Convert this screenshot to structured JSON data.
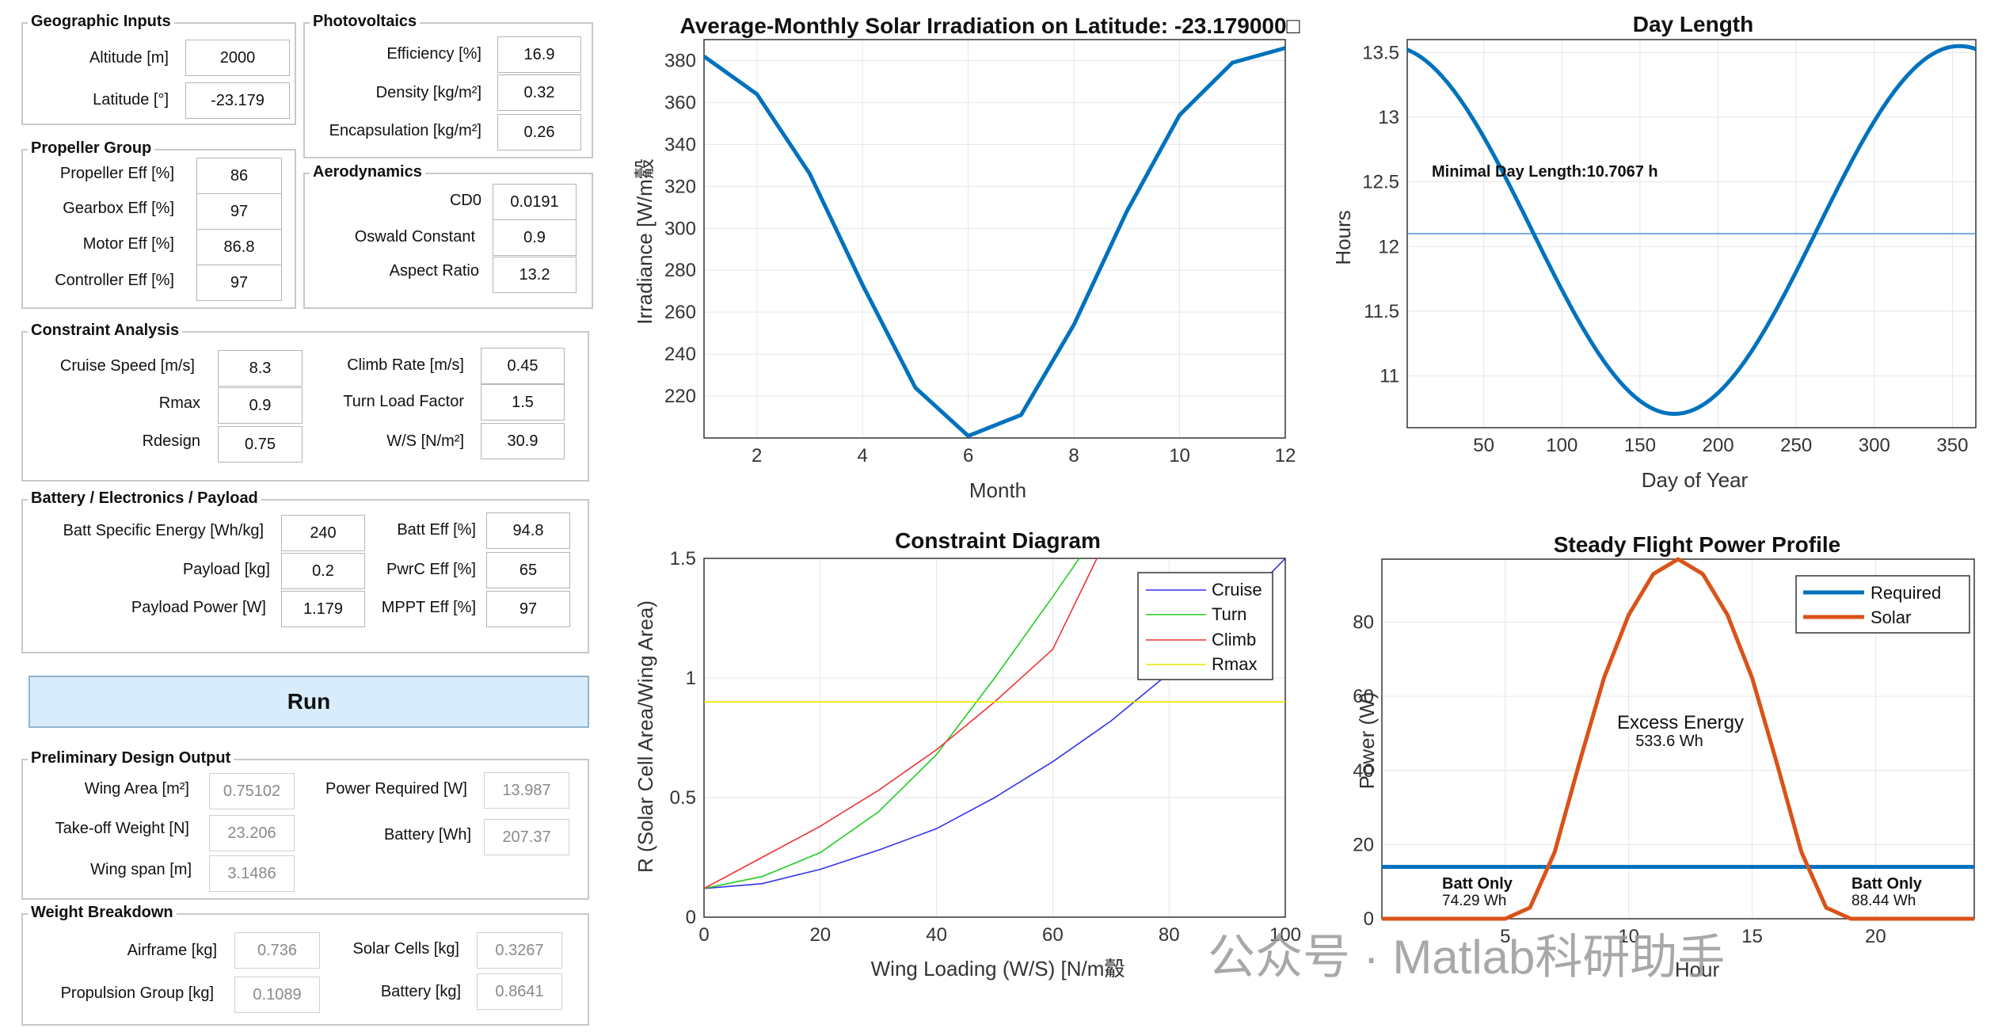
{
  "geo": {
    "title": "Geographic Inputs",
    "altitude_label": "Altitude [m]",
    "altitude": "2000",
    "latitude_label": "Latitude [°]",
    "latitude": "-23.179"
  },
  "pv": {
    "title": "Photovoltaics",
    "eff_label": "Efficiency [%]",
    "eff": "16.9",
    "density_label": "Density [kg/m²]",
    "density": "0.32",
    "encap_label": "Encapsulation [kg/m²]",
    "encap": "0.26"
  },
  "prop": {
    "title": "Propeller Group",
    "prop_label": "Propeller Eff [%]",
    "prop": "86",
    "gear_label": "Gearbox Eff [%]",
    "gear": "97",
    "motor_label": "Motor Eff [%]",
    "motor": "86.8",
    "ctrl_label": "Controller Eff [%]",
    "ctrl": "97"
  },
  "aero": {
    "title": "Aerodynamics",
    "cd0_label": "CD0",
    "cd0": "0.0191",
    "osw_label": "Oswald Constant",
    "osw": "0.9",
    "ar_label": "Aspect Ratio",
    "ar": "13.2"
  },
  "con": {
    "title": "Constraint Analysis",
    "cruise_label": "Cruise Speed [m/s]",
    "cruise": "8.3",
    "rmax_label": "Rmax",
    "rmax": "0.9",
    "rdesign_label": "Rdesign",
    "rdesign": "0.75",
    "climb_label": "Climb Rate [m/s]",
    "climb": "0.45",
    "turn_label": "Turn Load Factor",
    "turn": "1.5",
    "ws_label": "W/S [N/m²]",
    "ws": "30.9"
  },
  "batt": {
    "title": "Battery / Electronics / Payload",
    "bse_label": "Batt Specific Energy [Wh/kg]",
    "bse": "240",
    "payload_label": "Payload [kg]",
    "payload": "0.2",
    "ppow_label": "Payload Power [W]",
    "ppow": "1.179",
    "beff_label": "Batt Eff [%]",
    "beff": "94.8",
    "pwrc_label": "PwrC Eff [%]",
    "pwrc": "65",
    "mppt_label": "MPPT Eff [%]",
    "mppt": "97"
  },
  "run_label": "Run",
  "out": {
    "title": "Preliminary Design Output",
    "wa_label": "Wing Area [m²]",
    "wa": "0.75102",
    "tow_label": "Take-off Weight [N]",
    "tow": "23.206",
    "span_label": "Wing span [m]",
    "span": "3.1486",
    "preq_label": "Power Required [W]",
    "preq": "13.987",
    "bwh_label": "Battery [Wh]",
    "bwh": "207.37"
  },
  "wb": {
    "title": "Weight Breakdown",
    "airframe_label": "Airframe [kg]",
    "airframe": "0.736",
    "propg_label": "Propulsion Group [kg]",
    "propg": "0.1089",
    "cells_label": "Solar Cells [kg]",
    "cells": "0.3267",
    "battkg_label": "Battery [kg]",
    "battkg": "0.8641"
  },
  "watermark": "公众号 · Matlab科研助手",
  "chart_data": [
    {
      "type": "line",
      "title": "Average-Monthly Solar Irradiation on Latitude: -23.179000□",
      "xlabel": "Month",
      "ylabel": "Irradiance [W/m觳",
      "x": [
        1,
        2,
        3,
        4,
        5,
        6,
        7,
        8,
        9,
        10,
        11,
        12
      ],
      "values": [
        382,
        364,
        326,
        273,
        224,
        201,
        211,
        254,
        308,
        354,
        379,
        386
      ],
      "xlim": [
        1,
        12
      ],
      "ylim": [
        200,
        390
      ],
      "xticks": [
        2,
        4,
        6,
        8,
        10,
        12
      ],
      "yticks": [
        220,
        240,
        260,
        280,
        300,
        320,
        340,
        360,
        380
      ],
      "color": "#0072bd"
    },
    {
      "type": "line",
      "title": "Day Length",
      "xlabel": "Day of Year",
      "ylabel": "Hours",
      "xlim": [
        1,
        365
      ],
      "ylim": [
        10.6,
        13.6
      ],
      "xticks": [
        50,
        100,
        150,
        200,
        250,
        300,
        350
      ],
      "yticks": [
        11,
        11.5,
        12,
        12.5,
        13,
        13.5
      ],
      "min": 10.7067,
      "max": 13.55,
      "min_day": 172,
      "annotation": "Minimal Day Length:10.7067 h",
      "ref_line": 12.1,
      "color": "#0072bd"
    },
    {
      "type": "line",
      "title": "Constraint Diagram",
      "xlabel": "Wing Loading (W/S) [N/m觳",
      "ylabel": "R (Solar Cell Area/Wing Area)",
      "xlim": [
        0,
        100
      ],
      "ylim": [
        0,
        1.5
      ],
      "xticks": [
        0,
        20,
        40,
        60,
        80,
        100
      ],
      "yticks": [
        0,
        0.5,
        1,
        1.5
      ],
      "series": [
        {
          "name": "Cruise",
          "color": "#3333ee",
          "x": [
            0,
            10,
            20,
            30,
            40,
            50,
            60,
            70,
            80,
            90,
            100
          ],
          "values": [
            0.12,
            0.14,
            0.2,
            0.28,
            0.37,
            0.5,
            0.65,
            0.82,
            1.02,
            1.25,
            1.5
          ]
        },
        {
          "name": "Turn",
          "color": "#22cc22",
          "x": [
            0,
            10,
            20,
            30,
            40,
            50,
            60,
            66
          ],
          "values": [
            0.12,
            0.17,
            0.27,
            0.44,
            0.68,
            1.0,
            1.34,
            1.55
          ]
        },
        {
          "name": "Climb",
          "color": "#ee3333",
          "x": [
            0,
            10,
            20,
            30,
            40,
            50,
            60,
            68
          ],
          "values": [
            0.12,
            0.25,
            0.38,
            0.53,
            0.7,
            0.9,
            1.12,
            1.52
          ]
        },
        {
          "name": "Rmax",
          "color": "#e8e800",
          "x": [
            0,
            100
          ],
          "values": [
            0.9,
            0.9
          ]
        }
      ]
    },
    {
      "type": "line",
      "title": "Steady Flight Power Profile",
      "xlabel": "Hour",
      "ylabel": "Power (W)",
      "xlim": [
        0,
        24
      ],
      "ylim": [
        0,
        97
      ],
      "xticks": [
        5,
        10,
        15,
        20
      ],
      "yticks": [
        0,
        20,
        40,
        60,
        80
      ],
      "series": [
        {
          "name": "Required",
          "color": "#0072bd",
          "x": [
            0,
            24
          ],
          "values": [
            14,
            14
          ]
        },
        {
          "name": "Solar",
          "color": "#d95319",
          "x": [
            0,
            5,
            6,
            7,
            8,
            9,
            10,
            11,
            12,
            13,
            14,
            15,
            16,
            17,
            18,
            19,
            24
          ],
          "values": [
            0,
            0,
            3,
            18,
            42,
            65,
            82,
            93,
            97,
            93,
            82,
            65,
            42,
            18,
            3,
            0,
            0
          ]
        }
      ],
      "labels": {
        "excess": "Excess Energy",
        "excess_val": "533.6 Wh",
        "batt_only": "Batt Only",
        "batt_left": "74.29 Wh",
        "batt_right": "88.44 Wh"
      }
    }
  ]
}
